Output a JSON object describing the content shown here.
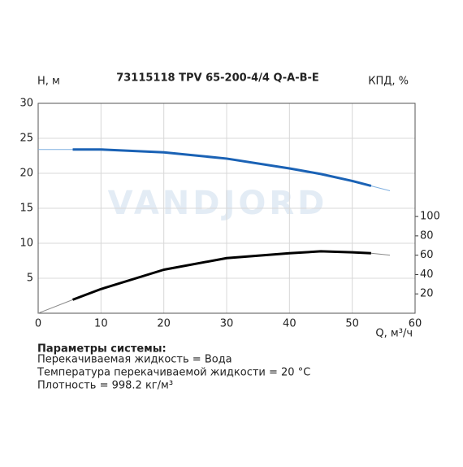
{
  "chart_data": {
    "type": "line",
    "title": "73115118 TPV 65-200-4/4 Q-A-B-E",
    "watermark": "VANDJORD",
    "ylabel": "H, м",
    "y2label": "КПД, %",
    "xlabel": "Q, м³/ч",
    "x": [
      0,
      5.5,
      10,
      20,
      30,
      40,
      45,
      50,
      53,
      56
    ],
    "series": [
      {
        "color": "#7fb0e0",
        "width": 1,
        "values": [
          23.4,
          23.4,
          23.4,
          23.0,
          22.1,
          20.7,
          19.9,
          18.9,
          18.2,
          17.5
        ]
      },
      {
        "color": "#1a62b5",
        "width": 3,
        "values": [
          null,
          23.4,
          23.4,
          23.0,
          22.1,
          20.7,
          19.9,
          18.9,
          18.2,
          null
        ]
      },
      {
        "color": "#8a8a8a",
        "width": 1,
        "axis": "y2",
        "values": [
          0,
          14,
          25,
          45,
          57,
          62,
          64,
          63,
          62,
          60
        ]
      },
      {
        "color": "#000000",
        "width": 3,
        "axis": "y2",
        "values": [
          null,
          14,
          25,
          45,
          57,
          62,
          64,
          63,
          62,
          null
        ]
      }
    ],
    "xlim": [
      0,
      60
    ],
    "xticks": [
      0,
      10,
      20,
      30,
      40,
      50,
      60
    ],
    "ylim": [
      0,
      30
    ],
    "yticks": [
      5,
      10,
      15,
      20,
      25,
      30
    ],
    "y2lim": [
      0,
      217
    ],
    "y2ticks": [
      20,
      40,
      60,
      80,
      100
    ],
    "grid": true
  },
  "notes": {
    "heading": "Параметры системы:",
    "lines": [
      "Перекачиваемая жидкость = Вода",
      "Температура перекачиваемой жидкости = 20 °C",
      "Плотность = 998.2 кг/м³"
    ]
  }
}
